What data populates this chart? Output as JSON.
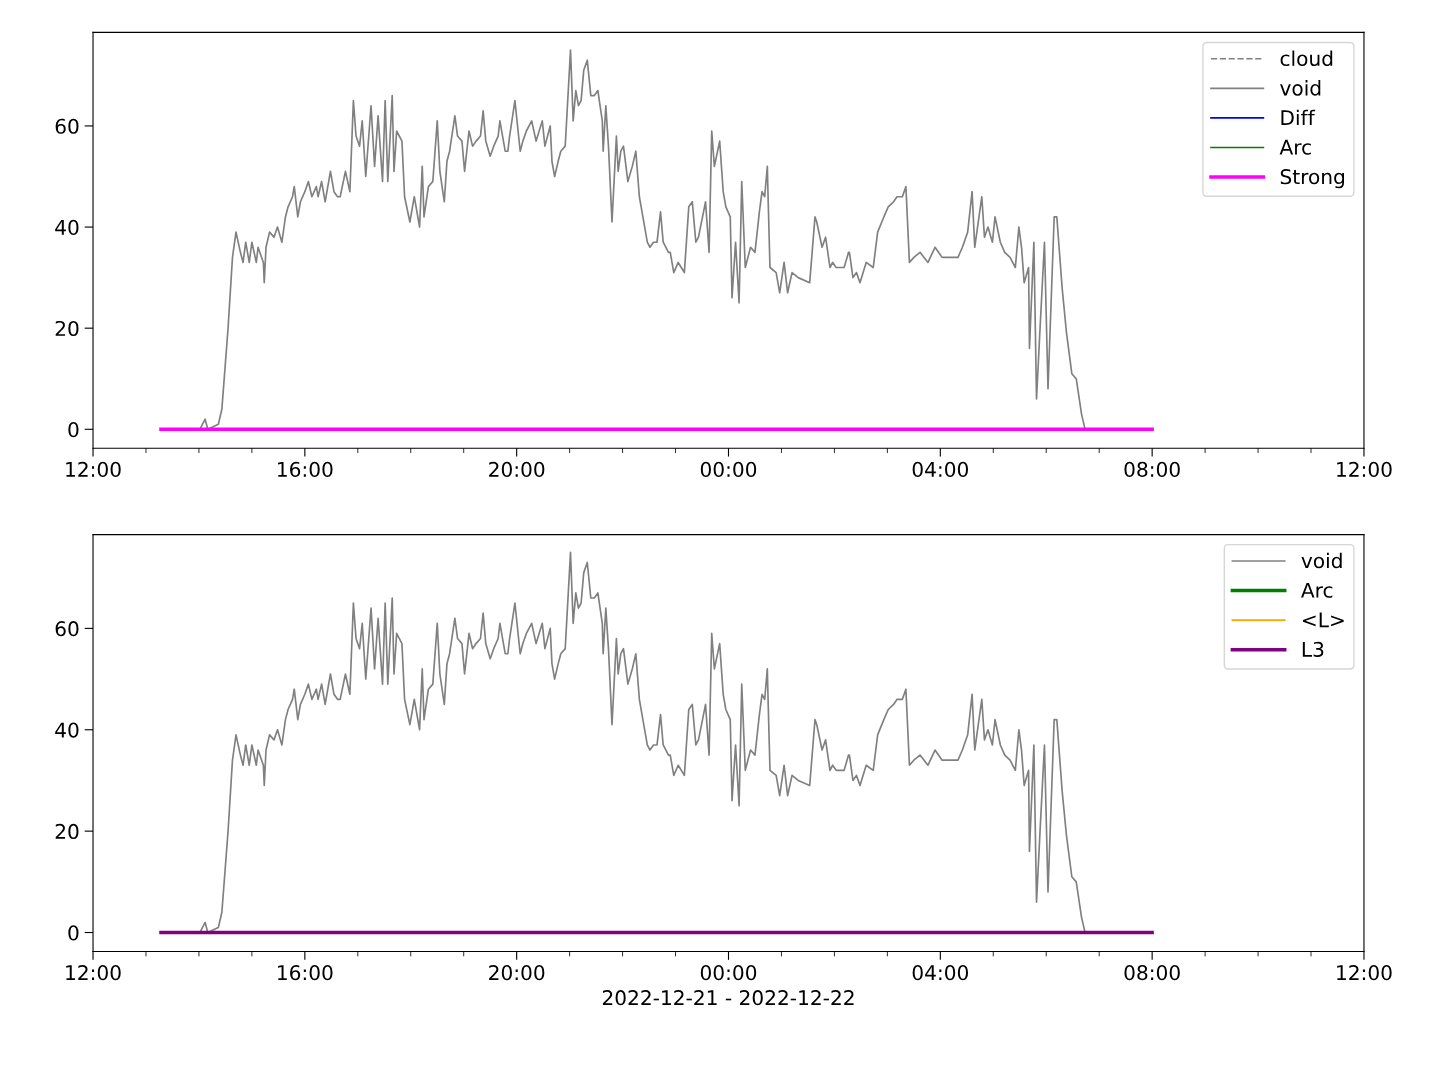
{
  "chart_data": [
    {
      "type": "line",
      "xlim": [
        "2022-12-21T12:00",
        "2022-12-22T12:00"
      ],
      "ylim": [
        -3.74,
        78.5
      ],
      "yticks": [
        0,
        20,
        40,
        60
      ],
      "xticks": [
        {
          "value": "2022-12-21T12:00",
          "label": "12:00"
        },
        {
          "value": "2022-12-21T13:00",
          "label": null
        },
        {
          "value": "2022-12-21T14:00",
          "label": null
        },
        {
          "value": "2022-12-21T15:00",
          "label": null
        },
        {
          "value": "2022-12-21T16:00",
          "label": "16:00"
        },
        {
          "value": "2022-12-21T17:00",
          "label": null
        },
        {
          "value": "2022-12-21T18:00",
          "label": null
        },
        {
          "value": "2022-12-21T19:00",
          "label": null
        },
        {
          "value": "2022-12-21T20:00",
          "label": "20:00"
        },
        {
          "value": "2022-12-21T21:00",
          "label": null
        },
        {
          "value": "2022-12-21T22:00",
          "label": null
        },
        {
          "value": "2022-12-21T23:00",
          "label": null
        },
        {
          "value": "2022-12-22T00:00",
          "label": "00:00"
        },
        {
          "value": "2022-12-22T01:00",
          "label": null
        },
        {
          "value": "2022-12-22T02:00",
          "label": null
        },
        {
          "value": "2022-12-22T03:00",
          "label": null
        },
        {
          "value": "2022-12-22T04:00",
          "label": "04:00"
        },
        {
          "value": "2022-12-22T05:00",
          "label": null
        },
        {
          "value": "2022-12-22T06:00",
          "label": null
        },
        {
          "value": "2022-12-22T07:00",
          "label": null
        },
        {
          "value": "2022-12-22T08:00",
          "label": "08:00"
        },
        {
          "value": "2022-12-22T09:00",
          "label": null
        },
        {
          "value": "2022-12-22T10:00",
          "label": null
        },
        {
          "value": "2022-12-22T11:00",
          "label": null
        },
        {
          "value": "2022-12-22T12:00",
          "label": "12:00"
        }
      ],
      "legend": "top right",
      "series": [
        {
          "name": "cloud",
          "color": "#808080",
          "line_style": "dashed"
        },
        {
          "name": "void",
          "color": "#808080",
          "line_style": "solid",
          "x": [
            "2022-12-21T14:01",
            "2022-12-21T14:07",
            "2022-12-21T14:10",
            "2022-12-21T14:22",
            "2022-12-21T14:26",
            "2022-12-21T14:33",
            "2022-12-21T14:38",
            "2022-12-21T14:42",
            "2022-12-21T14:47",
            "2022-12-21T14:50",
            "2022-12-21T14:53",
            "2022-12-21T14:57",
            "2022-12-21T15:00",
            "2022-12-21T15:05",
            "2022-12-21T15:07",
            "2022-12-21T15:13",
            "2022-12-21T15:14",
            "2022-12-21T15:16",
            "2022-12-21T15:20",
            "2022-12-21T15:25",
            "2022-12-21T15:29",
            "2022-12-21T15:34",
            "2022-12-21T15:38",
            "2022-12-21T15:41",
            "2022-12-21T15:46",
            "2022-12-21T15:48",
            "2022-12-21T15:50",
            "2022-12-21T15:52",
            "2022-12-21T15:55",
            "2022-12-21T16:00",
            "2022-12-21T16:04",
            "2022-12-21T16:08",
            "2022-12-21T16:13",
            "2022-12-21T16:15",
            "2022-12-21T16:19",
            "2022-12-21T16:23",
            "2022-12-21T16:26",
            "2022-12-21T16:29",
            "2022-12-21T16:33",
            "2022-12-21T16:37",
            "2022-12-21T16:40",
            "2022-12-21T16:46",
            "2022-12-21T16:51",
            "2022-12-21T16:55",
            "2022-12-21T16:58",
            "2022-12-21T17:02",
            "2022-12-21T17:05",
            "2022-12-21T17:09",
            "2022-12-21T17:15",
            "2022-12-21T17:19",
            "2022-12-21T17:23",
            "2022-12-21T17:28",
            "2022-12-21T17:31",
            "2022-12-21T17:34",
            "2022-12-21T17:39",
            "2022-12-21T17:41",
            "2022-12-21T17:44",
            "2022-12-21T17:50",
            "2022-12-21T17:53",
            "2022-12-21T17:59",
            "2022-12-21T18:04",
            "2022-12-21T18:10",
            "2022-12-21T18:13",
            "2022-12-21T18:15",
            "2022-12-21T18:20",
            "2022-12-21T18:25",
            "2022-12-21T18:30",
            "2022-12-21T18:33",
            "2022-12-21T18:38",
            "2022-12-21T18:41",
            "2022-12-21T18:44",
            "2022-12-21T18:50",
            "2022-12-21T18:53",
            "2022-12-21T18:58",
            "2022-12-21T19:01",
            "2022-12-21T19:06",
            "2022-12-21T19:10",
            "2022-12-21T19:14",
            "2022-12-21T19:19",
            "2022-12-21T19:22",
            "2022-12-21T19:25",
            "2022-12-21T19:30",
            "2022-12-21T19:34",
            "2022-12-21T19:39",
            "2022-12-21T19:41",
            "2022-12-21T19:47",
            "2022-12-21T19:50",
            "2022-12-21T19:52",
            "2022-12-21T19:58",
            "2022-12-21T20:04",
            "2022-12-21T20:07",
            "2022-12-21T20:11",
            "2022-12-21T20:17",
            "2022-12-21T20:22",
            "2022-12-21T20:29",
            "2022-12-21T20:32",
            "2022-12-21T20:38",
            "2022-12-21T20:40",
            "2022-12-21T20:43",
            "2022-12-21T20:47",
            "2022-12-21T20:50",
            "2022-12-21T20:55",
            "2022-12-21T21:01",
            "2022-12-21T21:04",
            "2022-12-21T21:07",
            "2022-12-21T21:10",
            "2022-12-21T21:13",
            "2022-12-21T21:16",
            "2022-12-21T21:20",
            "2022-12-21T21:24",
            "2022-12-21T21:28",
            "2022-12-21T21:32",
            "2022-12-21T21:37",
            "2022-12-21T21:38",
            "2022-12-21T21:41",
            "2022-12-21T21:44",
            "2022-12-21T21:48",
            "2022-12-21T21:53",
            "2022-12-21T21:55",
            "2022-12-21T21:58",
            "2022-12-21T22:01",
            "2022-12-21T22:06",
            "2022-12-21T22:11",
            "2022-12-21T22:15",
            "2022-12-21T22:19",
            "2022-12-21T22:23",
            "2022-12-21T22:28",
            "2022-12-21T22:31",
            "2022-12-21T22:35",
            "2022-12-21T22:39",
            "2022-12-21T22:43",
            "2022-12-21T22:46",
            "2022-12-21T22:52",
            "2022-12-21T22:54",
            "2022-12-21T22:58",
            "2022-12-21T23:03",
            "2022-12-21T23:10",
            "2022-12-21T23:15",
            "2022-12-21T23:19",
            "2022-12-21T23:23",
            "2022-12-21T23:26",
            "2022-12-21T23:34",
            "2022-12-21T23:38",
            "2022-12-21T23:41",
            "2022-12-21T23:44",
            "2022-12-21T23:50",
            "2022-12-21T23:54",
            "2022-12-21T23:57",
            "2022-12-22T00:02",
            "2022-12-22T00:04",
            "2022-12-22T00:08",
            "2022-12-22T00:12",
            "2022-12-22T00:15",
            "2022-12-22T00:19",
            "2022-12-22T00:25",
            "2022-12-22T00:30",
            "2022-12-22T00:35",
            "2022-12-22T00:38",
            "2022-12-22T00:41",
            "2022-12-22T00:44",
            "2022-12-22T00:45",
            "2022-12-22T00:47",
            "2022-12-22T00:54",
            "2022-12-22T00:58",
            "2022-12-22T01:03",
            "2022-12-22T01:07",
            "2022-12-22T01:12",
            "2022-12-22T01:19",
            "2022-12-22T01:32",
            "2022-12-22T01:38",
            "2022-12-22T01:40",
            "2022-12-22T01:46",
            "2022-12-22T01:50",
            "2022-12-22T01:55",
            "2022-12-22T01:58",
            "2022-12-22T02:02",
            "2022-12-22T02:07",
            "2022-12-22T02:11",
            "2022-12-22T02:16",
            "2022-12-22T02:17",
            "2022-12-22T02:21",
            "2022-12-22T02:25",
            "2022-12-22T02:29",
            "2022-12-22T02:36",
            "2022-12-22T02:44",
            "2022-12-22T02:49",
            "2022-12-22T02:56",
            "2022-12-22T03:01",
            "2022-12-22T03:07",
            "2022-12-22T03:11",
            "2022-12-22T03:17",
            "2022-12-22T03:21",
            "2022-12-22T03:25",
            "2022-12-22T03:30",
            "2022-12-22T03:37",
            "2022-12-22T03:46",
            "2022-12-22T03:54",
            "2022-12-22T04:02",
            "2022-12-22T04:11",
            "2022-12-22T04:20",
            "2022-12-22T04:25",
            "2022-12-22T04:31",
            "2022-12-22T04:36",
            "2022-12-22T04:39",
            "2022-12-22T04:47",
            "2022-12-22T04:50",
            "2022-12-22T04:54",
            "2022-12-22T04:59",
            "2022-12-22T05:02",
            "2022-12-22T05:08",
            "2022-12-22T05:13",
            "2022-12-22T05:19",
            "2022-12-22T05:25",
            "2022-12-22T05:29",
            "2022-12-22T05:32",
            "2022-12-22T05:35",
            "2022-12-22T05:40",
            "2022-12-22T05:41",
            "2022-12-22T05:46",
            "2022-12-22T05:49",
            "2022-12-22T05:53",
            "2022-12-22T05:58",
            "2022-12-22T06:02",
            "2022-12-22T06:09",
            "2022-12-22T06:12",
            "2022-12-22T06:18",
            "2022-12-22T06:23",
            "2022-12-22T06:29",
            "2022-12-22T06:34",
            "2022-12-22T06:40",
            "2022-12-22T06:44"
          ],
          "values": [
            0,
            2,
            0,
            1,
            4,
            20,
            34,
            39,
            35,
            33,
            37,
            33,
            37,
            33,
            36,
            33,
            29,
            36,
            39,
            38,
            40,
            37,
            42,
            44,
            46,
            48,
            45,
            42,
            45,
            47,
            49,
            46,
            48,
            46,
            49,
            45,
            48,
            51,
            47,
            46,
            46,
            51,
            47,
            65,
            58,
            56,
            61,
            50,
            64,
            52,
            62,
            49,
            65,
            49,
            66,
            51,
            59,
            57,
            46,
            41,
            46,
            40,
            52,
            42,
            48,
            49,
            61,
            51,
            45,
            53,
            55,
            62,
            58,
            57,
            51,
            59,
            56,
            57,
            58,
            63,
            57,
            54,
            56,
            58,
            61,
            55,
            55,
            58,
            65,
            55,
            57,
            59,
            61,
            57,
            61,
            56,
            60,
            53,
            50,
            53,
            55,
            56,
            75,
            61,
            67,
            64,
            65,
            71,
            73,
            66,
            66,
            67,
            61,
            55,
            64,
            56,
            41,
            58,
            51,
            55,
            56,
            49,
            52,
            55,
            46,
            42,
            37,
            36,
            37,
            37,
            43,
            37,
            35,
            35,
            31,
            33,
            31,
            44,
            45,
            37,
            38,
            45,
            35,
            59,
            52,
            57,
            47,
            44,
            42,
            26,
            37,
            25,
            49,
            32,
            36,
            35,
            43,
            47,
            46,
            52,
            45,
            32,
            31,
            27,
            33,
            27,
            31,
            30,
            29,
            42,
            41,
            36,
            38,
            32,
            33,
            32,
            32,
            32,
            35,
            35,
            30,
            31,
            29,
            33,
            32,
            39,
            42,
            44,
            45,
            46,
            46,
            48,
            33,
            34,
            35,
            33,
            36,
            34,
            34,
            34,
            36,
            39,
            47,
            36,
            46,
            38,
            40,
            37,
            42,
            37,
            35,
            34,
            32,
            40,
            36,
            29,
            32,
            16,
            37,
            6,
            20,
            37,
            8,
            42,
            42,
            28,
            19,
            11,
            10,
            3,
            0
          ]
        },
        {
          "name": "Diff",
          "color": "#0000ff",
          "line_style": "solid"
        },
        {
          "name": "Arc",
          "color": "#008000",
          "line_style": "solid"
        },
        {
          "name": "Strong",
          "color": "#ff00ff",
          "line_style": "solid",
          "x": [
            "2022-12-21T13:17",
            "2022-12-22T08:00"
          ],
          "values": [
            0,
            0
          ]
        }
      ]
    },
    {
      "type": "line",
      "xlim": [
        "2022-12-21T12:00",
        "2022-12-22T12:00"
      ],
      "ylim": [
        -3.74,
        78.5
      ],
      "yticks": [
        0,
        20,
        40,
        60
      ],
      "xticks": [
        {
          "value": "2022-12-21T12:00",
          "label": "12:00"
        },
        {
          "value": "2022-12-21T13:00",
          "label": null
        },
        {
          "value": "2022-12-21T14:00",
          "label": null
        },
        {
          "value": "2022-12-21T15:00",
          "label": null
        },
        {
          "value": "2022-12-21T16:00",
          "label": "16:00"
        },
        {
          "value": "2022-12-21T17:00",
          "label": null
        },
        {
          "value": "2022-12-21T18:00",
          "label": null
        },
        {
          "value": "2022-12-21T19:00",
          "label": null
        },
        {
          "value": "2022-12-21T20:00",
          "label": "20:00"
        },
        {
          "value": "2022-12-21T21:00",
          "label": null
        },
        {
          "value": "2022-12-21T22:00",
          "label": null
        },
        {
          "value": "2022-12-21T23:00",
          "label": null
        },
        {
          "value": "2022-12-22T00:00",
          "label": "00:00"
        },
        {
          "value": "2022-12-22T01:00",
          "label": null
        },
        {
          "value": "2022-12-22T02:00",
          "label": null
        },
        {
          "value": "2022-12-22T03:00",
          "label": null
        },
        {
          "value": "2022-12-22T04:00",
          "label": "04:00"
        },
        {
          "value": "2022-12-22T05:00",
          "label": null
        },
        {
          "value": "2022-12-22T06:00",
          "label": null
        },
        {
          "value": "2022-12-22T07:00",
          "label": null
        },
        {
          "value": "2022-12-22T08:00",
          "label": "08:00"
        },
        {
          "value": "2022-12-22T09:00",
          "label": null
        },
        {
          "value": "2022-12-22T10:00",
          "label": null
        },
        {
          "value": "2022-12-22T11:00",
          "label": null
        },
        {
          "value": "2022-12-22T12:00",
          "label": "12:00"
        }
      ],
      "xlabel": "2022-12-21 - 2022-12-22",
      "legend": "top right",
      "series": [
        {
          "name": "void",
          "color": "#808080",
          "line_style": "solid",
          "x": [
            "2022-12-21T14:01",
            "2022-12-21T14:07",
            "2022-12-21T14:10",
            "2022-12-21T14:22",
            "2022-12-21T14:26",
            "2022-12-21T14:33",
            "2022-12-21T14:38",
            "2022-12-21T14:42",
            "2022-12-21T14:47",
            "2022-12-21T14:50",
            "2022-12-21T14:53",
            "2022-12-21T14:57",
            "2022-12-21T15:00",
            "2022-12-21T15:05",
            "2022-12-21T15:07",
            "2022-12-21T15:13",
            "2022-12-21T15:14",
            "2022-12-21T15:16",
            "2022-12-21T15:20",
            "2022-12-21T15:25",
            "2022-12-21T15:29",
            "2022-12-21T15:34",
            "2022-12-21T15:38",
            "2022-12-21T15:41",
            "2022-12-21T15:46",
            "2022-12-21T15:48",
            "2022-12-21T15:50",
            "2022-12-21T15:52",
            "2022-12-21T15:55",
            "2022-12-21T16:00",
            "2022-12-21T16:04",
            "2022-12-21T16:08",
            "2022-12-21T16:13",
            "2022-12-21T16:15",
            "2022-12-21T16:19",
            "2022-12-21T16:23",
            "2022-12-21T16:26",
            "2022-12-21T16:29",
            "2022-12-21T16:33",
            "2022-12-21T16:37",
            "2022-12-21T16:40",
            "2022-12-21T16:46",
            "2022-12-21T16:51",
            "2022-12-21T16:55",
            "2022-12-21T16:58",
            "2022-12-21T17:02",
            "2022-12-21T17:05",
            "2022-12-21T17:09",
            "2022-12-21T17:15",
            "2022-12-21T17:19",
            "2022-12-21T17:23",
            "2022-12-21T17:28",
            "2022-12-21T17:31",
            "2022-12-21T17:34",
            "2022-12-21T17:39",
            "2022-12-21T17:41",
            "2022-12-21T17:44",
            "2022-12-21T17:50",
            "2022-12-21T17:53",
            "2022-12-21T17:59",
            "2022-12-21T18:04",
            "2022-12-21T18:10",
            "2022-12-21T18:13",
            "2022-12-21T18:15",
            "2022-12-21T18:20",
            "2022-12-21T18:25",
            "2022-12-21T18:30",
            "2022-12-21T18:33",
            "2022-12-21T18:38",
            "2022-12-21T18:41",
            "2022-12-21T18:44",
            "2022-12-21T18:50",
            "2022-12-21T18:53",
            "2022-12-21T18:58",
            "2022-12-21T19:01",
            "2022-12-21T19:06",
            "2022-12-21T19:10",
            "2022-12-21T19:14",
            "2022-12-21T19:19",
            "2022-12-21T19:22",
            "2022-12-21T19:25",
            "2022-12-21T19:30",
            "2022-12-21T19:34",
            "2022-12-21T19:39",
            "2022-12-21T19:41",
            "2022-12-21T19:47",
            "2022-12-21T19:50",
            "2022-12-21T19:52",
            "2022-12-21T19:58",
            "2022-12-21T20:04",
            "2022-12-21T20:07",
            "2022-12-21T20:11",
            "2022-12-21T20:17",
            "2022-12-21T20:22",
            "2022-12-21T20:29",
            "2022-12-21T20:32",
            "2022-12-21T20:38",
            "2022-12-21T20:40",
            "2022-12-21T20:43",
            "2022-12-21T20:47",
            "2022-12-21T20:50",
            "2022-12-21T20:55",
            "2022-12-21T21:01",
            "2022-12-21T21:04",
            "2022-12-21T21:07",
            "2022-12-21T21:10",
            "2022-12-21T21:13",
            "2022-12-21T21:16",
            "2022-12-21T21:20",
            "2022-12-21T21:24",
            "2022-12-21T21:28",
            "2022-12-21T21:32",
            "2022-12-21T21:37",
            "2022-12-21T21:38",
            "2022-12-21T21:41",
            "2022-12-21T21:44",
            "2022-12-21T21:48",
            "2022-12-21T21:53",
            "2022-12-21T21:55",
            "2022-12-21T21:58",
            "2022-12-21T22:01",
            "2022-12-21T22:06",
            "2022-12-21T22:11",
            "2022-12-21T22:15",
            "2022-12-21T22:19",
            "2022-12-21T22:23",
            "2022-12-21T22:28",
            "2022-12-21T22:31",
            "2022-12-21T22:35",
            "2022-12-21T22:39",
            "2022-12-21T22:43",
            "2022-12-21T22:46",
            "2022-12-21T22:52",
            "2022-12-21T22:54",
            "2022-12-21T22:58",
            "2022-12-21T23:03",
            "2022-12-21T23:10",
            "2022-12-21T23:15",
            "2022-12-21T23:19",
            "2022-12-21T23:23",
            "2022-12-21T23:26",
            "2022-12-21T23:34",
            "2022-12-21T23:38",
            "2022-12-21T23:41",
            "2022-12-21T23:44",
            "2022-12-21T23:50",
            "2022-12-21T23:54",
            "2022-12-21T23:57",
            "2022-12-22T00:02",
            "2022-12-22T00:04",
            "2022-12-22T00:08",
            "2022-12-22T00:12",
            "2022-12-22T00:15",
            "2022-12-22T00:19",
            "2022-12-22T00:25",
            "2022-12-22T00:30",
            "2022-12-22T00:35",
            "2022-12-22T00:38",
            "2022-12-22T00:41",
            "2022-12-22T00:44",
            "2022-12-22T00:45",
            "2022-12-22T00:47",
            "2022-12-22T00:54",
            "2022-12-22T00:58",
            "2022-12-22T01:03",
            "2022-12-22T01:07",
            "2022-12-22T01:12",
            "2022-12-22T01:19",
            "2022-12-22T01:32",
            "2022-12-22T01:38",
            "2022-12-22T01:40",
            "2022-12-22T01:46",
            "2022-12-22T01:50",
            "2022-12-22T01:55",
            "2022-12-22T01:58",
            "2022-12-22T02:02",
            "2022-12-22T02:07",
            "2022-12-22T02:11",
            "2022-12-22T02:16",
            "2022-12-22T02:17",
            "2022-12-22T02:21",
            "2022-12-22T02:25",
            "2022-12-22T02:29",
            "2022-12-22T02:36",
            "2022-12-22T02:44",
            "2022-12-22T02:49",
            "2022-12-22T02:56",
            "2022-12-22T03:01",
            "2022-12-22T03:07",
            "2022-12-22T03:11",
            "2022-12-22T03:17",
            "2022-12-22T03:21",
            "2022-12-22T03:25",
            "2022-12-22T03:30",
            "2022-12-22T03:37",
            "2022-12-22T03:46",
            "2022-12-22T03:54",
            "2022-12-22T04:02",
            "2022-12-22T04:11",
            "2022-12-22T04:20",
            "2022-12-22T04:25",
            "2022-12-22T04:31",
            "2022-12-22T04:36",
            "2022-12-22T04:39",
            "2022-12-22T04:47",
            "2022-12-22T04:50",
            "2022-12-22T04:54",
            "2022-12-22T04:59",
            "2022-12-22T05:02",
            "2022-12-22T05:08",
            "2022-12-22T05:13",
            "2022-12-22T05:19",
            "2022-12-22T05:25",
            "2022-12-22T05:29",
            "2022-12-22T05:32",
            "2022-12-22T05:35",
            "2022-12-22T05:40",
            "2022-12-22T05:41",
            "2022-12-22T05:46",
            "2022-12-22T05:49",
            "2022-12-22T05:53",
            "2022-12-22T05:58",
            "2022-12-22T06:02",
            "2022-12-22T06:09",
            "2022-12-22T06:12",
            "2022-12-22T06:18",
            "2022-12-22T06:23",
            "2022-12-22T06:29",
            "2022-12-22T06:34",
            "2022-12-22T06:40",
            "2022-12-22T06:44"
          ],
          "values": [
            0,
            2,
            0,
            1,
            4,
            20,
            34,
            39,
            35,
            33,
            37,
            33,
            37,
            33,
            36,
            33,
            29,
            36,
            39,
            38,
            40,
            37,
            42,
            44,
            46,
            48,
            45,
            42,
            45,
            47,
            49,
            46,
            48,
            46,
            49,
            45,
            48,
            51,
            47,
            46,
            46,
            51,
            47,
            65,
            58,
            56,
            61,
            50,
            64,
            52,
            62,
            49,
            65,
            49,
            66,
            51,
            59,
            57,
            46,
            41,
            46,
            40,
            52,
            42,
            48,
            49,
            61,
            51,
            45,
            53,
            55,
            62,
            58,
            57,
            51,
            59,
            56,
            57,
            58,
            63,
            57,
            54,
            56,
            58,
            61,
            55,
            55,
            58,
            65,
            55,
            57,
            59,
            61,
            57,
            61,
            56,
            60,
            53,
            50,
            53,
            55,
            56,
            75,
            61,
            67,
            64,
            65,
            71,
            73,
            66,
            66,
            67,
            61,
            55,
            64,
            56,
            41,
            58,
            51,
            55,
            56,
            49,
            52,
            55,
            46,
            42,
            37,
            36,
            37,
            37,
            43,
            37,
            35,
            35,
            31,
            33,
            31,
            44,
            45,
            37,
            38,
            45,
            35,
            59,
            52,
            57,
            47,
            44,
            42,
            26,
            37,
            25,
            49,
            32,
            36,
            35,
            43,
            47,
            46,
            52,
            45,
            32,
            31,
            27,
            33,
            27,
            31,
            30,
            29,
            42,
            41,
            36,
            38,
            32,
            33,
            32,
            32,
            32,
            35,
            35,
            30,
            31,
            29,
            33,
            32,
            39,
            42,
            44,
            45,
            46,
            46,
            48,
            33,
            34,
            35,
            33,
            36,
            34,
            34,
            34,
            36,
            39,
            47,
            36,
            46,
            38,
            40,
            37,
            42,
            37,
            35,
            34,
            32,
            40,
            36,
            29,
            32,
            16,
            37,
            6,
            20,
            37,
            8,
            42,
            42,
            28,
            19,
            11,
            10,
            3,
            0
          ]
        },
        {
          "name": "Arc",
          "color": "#008000",
          "line_style": "solid"
        },
        {
          "name": "<L>",
          "color": "#ffa500",
          "line_style": "solid"
        },
        {
          "name": "L3",
          "color": "#800080",
          "line_style": "solid",
          "x": [
            "2022-12-21T13:17",
            "2022-12-22T08:00"
          ],
          "values": [
            0,
            0
          ]
        }
      ]
    }
  ]
}
